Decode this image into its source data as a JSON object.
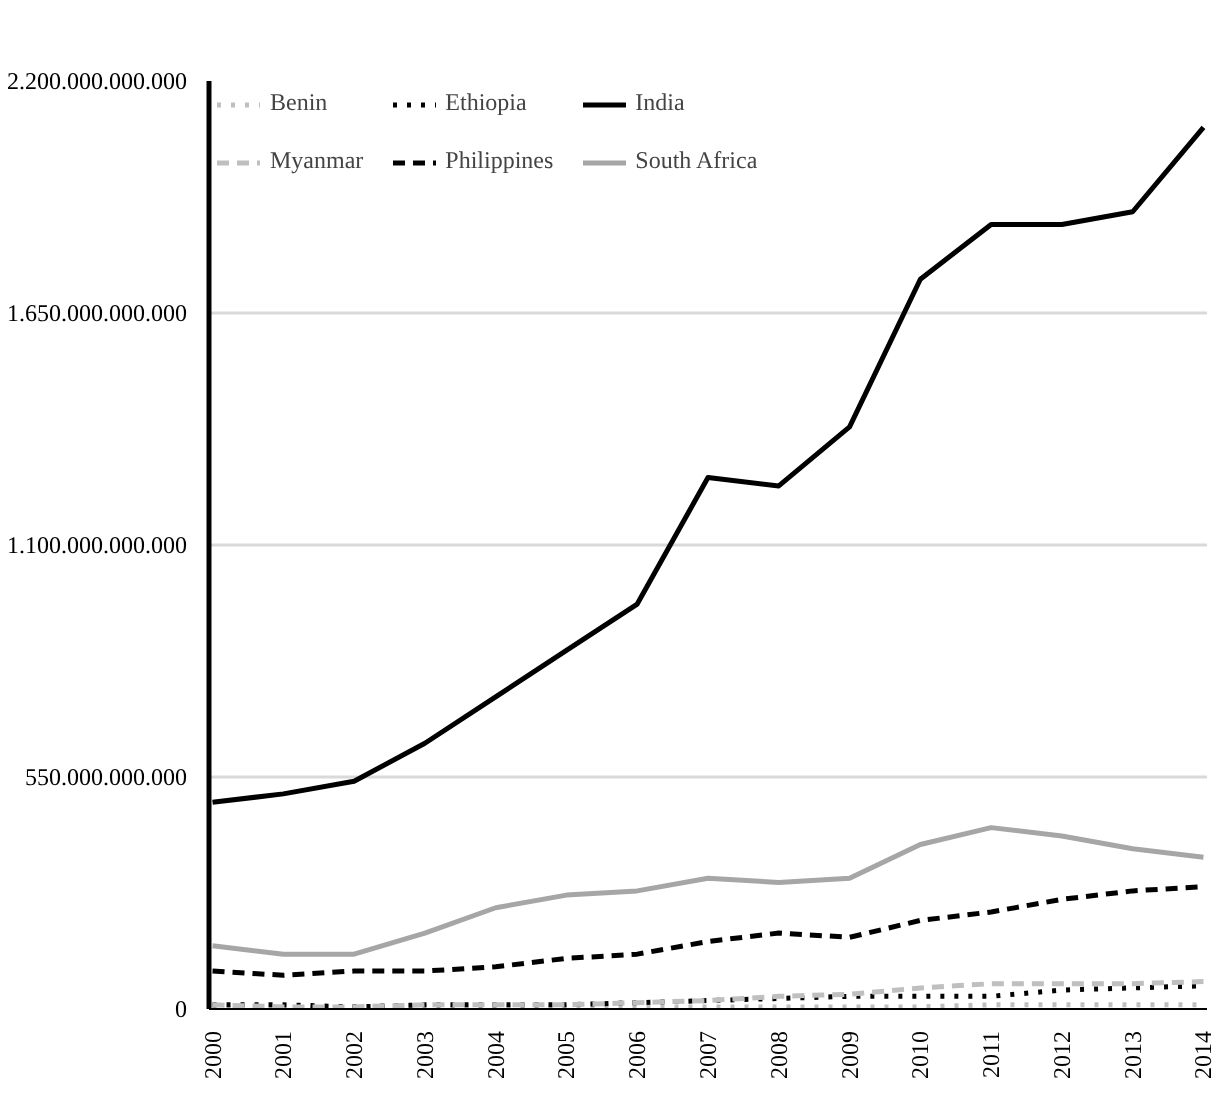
{
  "chart_data": {
    "type": "line",
    "categories": [
      "2000",
      "2001",
      "2002",
      "2003",
      "2004",
      "2005",
      "2006",
      "2007",
      "2008",
      "2009",
      "2010",
      "2011",
      "2012",
      "2013",
      "2014"
    ],
    "series": [
      {
        "name": "Benin",
        "color": "#bfbfbf",
        "line_style": "dotted",
        "values": [
          0,
          0,
          5000000000,
          5000000000,
          5000000000,
          5000000000,
          5000000000,
          5000000000,
          5000000000,
          5000000000,
          5000000000,
          10000000000,
          10000000000,
          10000000000,
          10000000000
        ]
      },
      {
        "name": "Ethiopia",
        "color": "#000000",
        "line_style": "dotted",
        "values": [
          10000000000,
          10000000000,
          5000000000,
          10000000000,
          10000000000,
          10000000000,
          15000000000,
          20000000000,
          25000000000,
          30000000000,
          30000000000,
          30000000000,
          45000000000,
          50000000000,
          55000000000
        ]
      },
      {
        "name": "India",
        "color": "#000000",
        "line_style": "solid",
        "values": [
          490000000000,
          510000000000,
          540000000000,
          630000000000,
          740000000000,
          850000000000,
          960000000000,
          1260000000000,
          1240000000000,
          1380000000000,
          1730000000000,
          1860000000000,
          1860000000000,
          1890000000000,
          2090000000000
        ]
      },
      {
        "name": "Myanmar",
        "color": "#bfbfbf",
        "line_style": "dashed",
        "values": [
          10000000000,
          5000000000,
          5000000000,
          10000000000,
          10000000000,
          10000000000,
          15000000000,
          20000000000,
          30000000000,
          35000000000,
          50000000000,
          60000000000,
          60000000000,
          60000000000,
          65000000000
        ]
      },
      {
        "name": "Philippines",
        "color": "#000000",
        "line_style": "dashed",
        "values": [
          90000000000,
          80000000000,
          90000000000,
          90000000000,
          100000000000,
          120000000000,
          130000000000,
          160000000000,
          180000000000,
          170000000000,
          210000000000,
          230000000000,
          260000000000,
          280000000000,
          290000000000
        ]
      },
      {
        "name": "South Africa",
        "color": "#a6a6a6",
        "line_style": "solid",
        "values": [
          150000000000,
          130000000000,
          130000000000,
          180000000000,
          240000000000,
          270000000000,
          280000000000,
          310000000000,
          300000000000,
          310000000000,
          390000000000,
          430000000000,
          410000000000,
          380000000000,
          360000000000
        ]
      }
    ],
    "ylim": [
      0,
      2200000000000
    ],
    "yticks": [
      {
        "value": 0,
        "label": "0"
      },
      {
        "value": 550000000000,
        "label": "550.000.000.000"
      },
      {
        "value": 1100000000000,
        "label": "1.100.000.000.000"
      },
      {
        "value": 1650000000000,
        "label": "1.650.000.000.000"
      },
      {
        "value": 2200000000000,
        "label": "2.200.000.000.000"
      }
    ],
    "grid": "y",
    "legend": "top left"
  }
}
